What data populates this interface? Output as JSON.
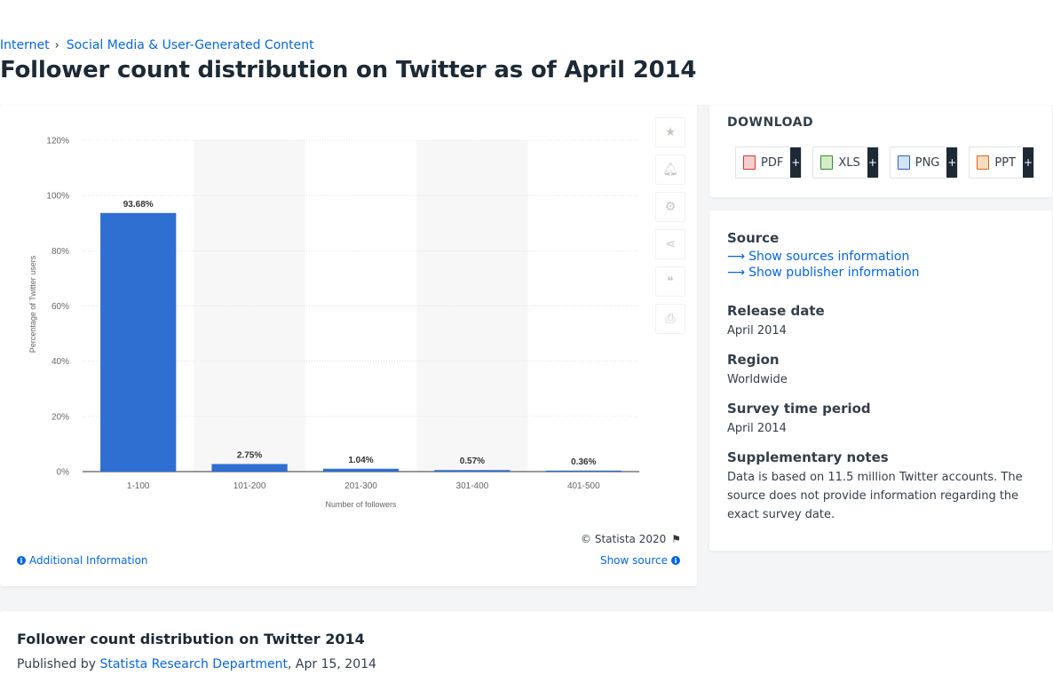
{
  "breadcrumb": {
    "items": [
      "Internet",
      "Social Media & User-Generated Content"
    ]
  },
  "page_title": "Follower count distribution on Twitter as of April 2014",
  "chart_data": {
    "type": "bar",
    "categories": [
      "1-100",
      "101-200",
      "201-300",
      "301-400",
      "401-500"
    ],
    "values": [
      93.68,
      2.75,
      1.04,
      0.57,
      0.36
    ],
    "data_labels": [
      "93.68%",
      "2.75%",
      "1.04%",
      "0.57%",
      "0.36%"
    ],
    "title": "",
    "xlabel": "Number of followers",
    "ylabel": "Percentage of Twitter users",
    "ylim": [
      0,
      120
    ],
    "yticks": [
      0,
      20,
      40,
      60,
      80,
      100,
      120
    ],
    "ytick_labels": [
      "0%",
      "20%",
      "40%",
      "60%",
      "80%",
      "100%",
      "120%"
    ],
    "grid": true,
    "bar_color": "#2e6fd1",
    "band_color": "#f7f7f7"
  },
  "chart_footer": {
    "copyright": "© Statista 2020",
    "additional_info": "Additional Information",
    "show_source": "Show source"
  },
  "tools": [
    "star-icon",
    "bell-icon",
    "gear-icon",
    "share-icon",
    "quote-icon",
    "print-icon"
  ],
  "download": {
    "title": "DOWNLOAD",
    "buttons": [
      {
        "label": "PDF",
        "icon": "pdf-file-icon"
      },
      {
        "label": "XLS",
        "icon": "xls-file-icon"
      },
      {
        "label": "PNG",
        "icon": "png-file-icon"
      },
      {
        "label": "PPT",
        "icon": "ppt-file-icon"
      }
    ],
    "plus": "+"
  },
  "info": {
    "source_label": "Source",
    "show_sources": "Show sources information",
    "show_publisher": "Show publisher information",
    "release_label": "Release date",
    "release_value": "April 2014",
    "region_label": "Region",
    "region_value": "Worldwide",
    "survey_label": "Survey time period",
    "survey_value": "April 2014",
    "notes_label": "Supplementary notes",
    "notes_value": "Data is based on 11.5 million Twitter accounts. The source does not provide information regarding the exact survey date."
  },
  "publication": {
    "title": "Follower count distribution on Twitter 2014",
    "published_by": "Published by",
    "author": "Statista Research Department",
    "date": ", Apr 15, 2014"
  },
  "colors": {
    "accent": "#0666e5",
    "text": "#1d2a36"
  }
}
